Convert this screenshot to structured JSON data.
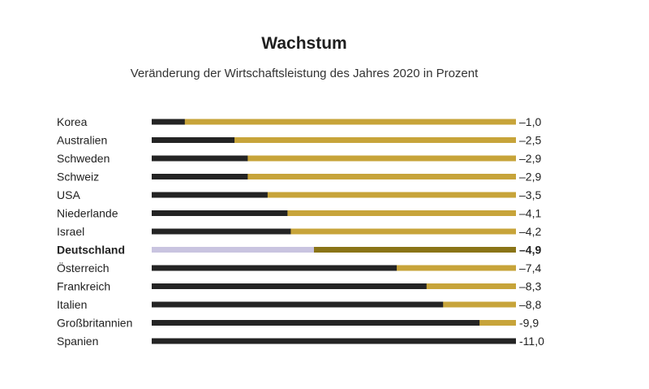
{
  "title": "Wachstum",
  "subtitle": "Veränderung der Wirtschaftsleistung des Jahres 2020 in Prozent",
  "colors": {
    "value_bar": "#242424",
    "track": "#c7a43a",
    "highlight_value_bar": "#c9c4e0",
    "highlight_track": "#8a7417",
    "text": "#222222"
  },
  "chart_data": {
    "type": "bar",
    "orientation": "horizontal",
    "title": "Wachstum",
    "subtitle": "Veränderung der Wirtschaftsleistung des Jahres 2020 in Prozent",
    "xlim": [
      0,
      -11.0
    ],
    "grid": false,
    "highlight": "Deutschland",
    "categories": [
      "Korea",
      "Australien",
      "Schweden",
      "Schweiz",
      "USA",
      "Niederlande",
      "Israel",
      "Deutschland",
      "Österreich",
      "Frankreich",
      "Italien",
      "Großbritannien",
      "Spanien"
    ],
    "values": [
      -1.0,
      -2.5,
      -2.9,
      -2.9,
      -3.5,
      -4.1,
      -4.2,
      -4.9,
      -7.4,
      -8.3,
      -8.8,
      -9.9,
      -11.0
    ],
    "value_labels": [
      "–1,0",
      "–2,5",
      "–2,9",
      "–2,9",
      "–3,5",
      "–4,1",
      "–4,2",
      "–4,9",
      "–7,4",
      "–8,3",
      "–8,8",
      "-9,9",
      "-11,0"
    ]
  }
}
